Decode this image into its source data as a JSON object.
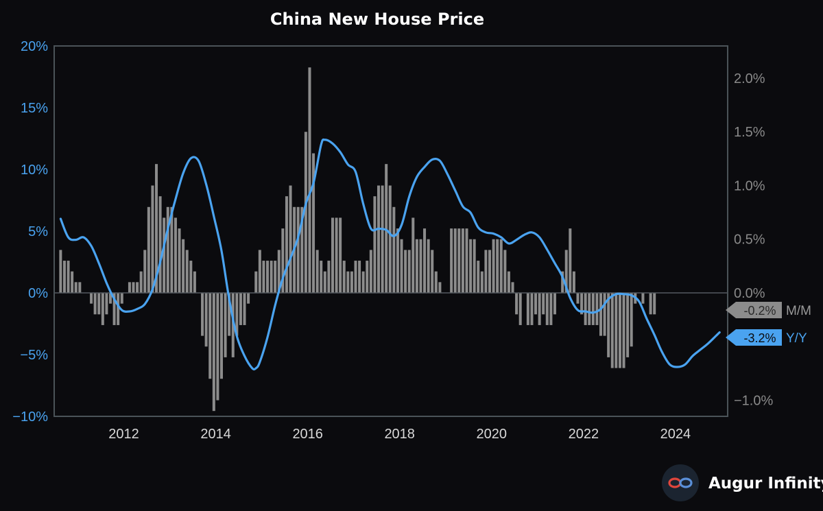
{
  "chart_data": {
    "type": "bar+line",
    "title": "China New House Price",
    "x_axis": {
      "ticks": [
        "2012",
        "2014",
        "2016",
        "2018",
        "2020",
        "2022",
        "2024"
      ]
    },
    "y_left": {
      "ylim": [
        -10,
        20
      ],
      "ticks": [
        20,
        15,
        10,
        5,
        0,
        -5,
        -10
      ],
      "tick_labels": [
        "20%",
        "15%",
        "10%",
        "5%",
        "0%",
        "−5%",
        "−10%"
      ],
      "color": "#4aa3f0"
    },
    "y_right": {
      "ylim": [
        -1.15,
        2.3
      ],
      "ticks": [
        2.0,
        1.5,
        1.0,
        0.5,
        0.0,
        -1.0
      ],
      "tick_labels": [
        "2.0%",
        "1.5%",
        "1.0%",
        "0.5%",
        "0.0%",
        "−1.0%"
      ],
      "color": "#8a8a8a"
    },
    "series": [
      {
        "name": "Y/Y",
        "kind": "line",
        "axis": "left",
        "color": "#4aa3f0",
        "last_value_label": "-3.2%",
        "points": [
          [
            "2011-02",
            6.0
          ],
          [
            "2011-04",
            4.5
          ],
          [
            "2011-06",
            4.3
          ],
          [
            "2011-08",
            4.5
          ],
          [
            "2011-10",
            3.8
          ],
          [
            "2011-12",
            2.4
          ],
          [
            "2012-02",
            0.8
          ],
          [
            "2012-04",
            -0.5
          ],
          [
            "2012-06",
            -1.4
          ],
          [
            "2012-08",
            -1.5
          ],
          [
            "2012-10",
            -1.3
          ],
          [
            "2012-12",
            -0.9
          ],
          [
            "2013-02",
            0.3
          ],
          [
            "2013-04",
            2.5
          ],
          [
            "2013-06",
            5.2
          ],
          [
            "2013-08",
            7.6
          ],
          [
            "2013-10",
            9.7
          ],
          [
            "2013-12",
            10.9
          ],
          [
            "2014-02",
            10.7
          ],
          [
            "2014-04",
            8.8
          ],
          [
            "2014-06",
            6.2
          ],
          [
            "2014-08",
            3.4
          ],
          [
            "2014-10",
            -0.5
          ],
          [
            "2014-12",
            -3.5
          ],
          [
            "2015-02",
            -5.1
          ],
          [
            "2015-04",
            -6.1
          ],
          [
            "2015-05",
            -6.1
          ],
          [
            "2015-06",
            -5.6
          ],
          [
            "2015-08",
            -3.6
          ],
          [
            "2015-10",
            -1.0
          ],
          [
            "2015-12",
            1.2
          ],
          [
            "2016-02",
            2.8
          ],
          [
            "2016-04",
            4.5
          ],
          [
            "2016-06",
            7.2
          ],
          [
            "2016-08",
            8.9
          ],
          [
            "2016-10",
            12.0
          ],
          [
            "2016-11",
            12.4
          ],
          [
            "2017-01",
            12.1
          ],
          [
            "2017-03",
            11.4
          ],
          [
            "2017-05",
            10.4
          ],
          [
            "2017-07",
            9.8
          ],
          [
            "2017-09",
            7.2
          ],
          [
            "2017-11",
            5.2
          ],
          [
            "2018-01",
            5.2
          ],
          [
            "2018-03",
            5.1
          ],
          [
            "2018-05",
            4.6
          ],
          [
            "2018-07",
            5.5
          ],
          [
            "2018-09",
            7.8
          ],
          [
            "2018-11",
            9.4
          ],
          [
            "2019-01",
            10.2
          ],
          [
            "2019-03",
            10.8
          ],
          [
            "2019-05",
            10.7
          ],
          [
            "2019-07",
            9.6
          ],
          [
            "2019-09",
            8.3
          ],
          [
            "2019-11",
            7.0
          ],
          [
            "2020-01",
            6.5
          ],
          [
            "2020-03",
            5.3
          ],
          [
            "2020-05",
            4.9
          ],
          [
            "2020-07",
            4.8
          ],
          [
            "2020-09",
            4.5
          ],
          [
            "2020-11",
            4.0
          ],
          [
            "2021-01",
            4.3
          ],
          [
            "2021-03",
            4.7
          ],
          [
            "2021-05",
            4.9
          ],
          [
            "2021-07",
            4.5
          ],
          [
            "2021-09",
            3.5
          ],
          [
            "2021-11",
            2.4
          ],
          [
            "2022-01",
            1.3
          ],
          [
            "2022-03",
            -0.4
          ],
          [
            "2022-05",
            -1.4
          ],
          [
            "2022-07",
            -1.5
          ],
          [
            "2022-09",
            -1.6
          ],
          [
            "2022-11",
            -1.3
          ],
          [
            "2023-01",
            -0.5
          ],
          [
            "2023-03",
            -0.1
          ],
          [
            "2023-05",
            -0.1
          ],
          [
            "2023-07",
            -0.2
          ],
          [
            "2023-09",
            -0.7
          ],
          [
            "2023-11",
            -2.1
          ],
          [
            "2024-01",
            -3.4
          ],
          [
            "2024-03",
            -4.8
          ],
          [
            "2024-05",
            -5.8
          ],
          [
            "2024-07",
            -6.0
          ],
          [
            "2024-09",
            -5.8
          ],
          [
            "2024-11",
            -5.1
          ],
          [
            "2025-01",
            -4.6
          ],
          [
            "2025-03",
            -4.1
          ],
          [
            "2025-05",
            -3.5
          ],
          [
            "2025-06",
            -3.2
          ]
        ]
      },
      {
        "name": "M/M",
        "kind": "bar",
        "axis": "right",
        "color": "#8c8c8c",
        "last_value_label": "-0.2%",
        "start": "2011-02",
        "values": [
          0.4,
          0.3,
          0.3,
          0.2,
          0.1,
          0.1,
          0.0,
          0.0,
          -0.1,
          -0.2,
          -0.2,
          -0.3,
          -0.2,
          -0.1,
          -0.3,
          -0.3,
          -0.1,
          0.0,
          0.1,
          0.1,
          0.1,
          0.2,
          0.4,
          0.8,
          1.0,
          1.2,
          0.9,
          0.7,
          0.8,
          0.8,
          0.7,
          0.6,
          0.5,
          0.4,
          0.3,
          0.2,
          0.0,
          -0.4,
          -0.5,
          -0.8,
          -1.1,
          -1.0,
          -0.8,
          -0.6,
          -0.4,
          -0.6,
          -0.4,
          -0.3,
          -0.3,
          -0.1,
          0.0,
          0.2,
          0.4,
          0.3,
          0.3,
          0.3,
          0.3,
          0.4,
          0.6,
          0.9,
          1.0,
          0.8,
          0.8,
          0.8,
          1.5,
          2.1,
          1.3,
          0.4,
          0.3,
          0.2,
          0.3,
          0.7,
          0.7,
          0.7,
          0.3,
          0.2,
          0.2,
          0.3,
          0.3,
          0.2,
          0.3,
          0.4,
          0.9,
          1.0,
          1.0,
          1.2,
          1.0,
          0.8,
          0.6,
          0.5,
          0.4,
          0.4,
          0.7,
          0.5,
          0.5,
          0.6,
          0.5,
          0.4,
          0.2,
          0.1,
          0.0,
          0.0,
          0.6,
          0.6,
          0.6,
          0.6,
          0.6,
          0.5,
          0.5,
          0.3,
          0.2,
          0.4,
          0.4,
          0.5,
          0.5,
          0.5,
          0.4,
          0.2,
          0.1,
          -0.2,
          -0.3,
          0.0,
          -0.3,
          -0.3,
          -0.2,
          -0.3,
          -0.2,
          -0.3,
          -0.3,
          -0.2,
          0.0,
          0.2,
          0.4,
          0.6,
          0.2,
          -0.1,
          -0.2,
          -0.3,
          -0.3,
          -0.3,
          -0.3,
          -0.4,
          -0.4,
          -0.6,
          -0.7,
          -0.7,
          -0.7,
          -0.7,
          -0.6,
          -0.5,
          -0.1,
          0.0,
          -0.1,
          0.0,
          -0.2,
          -0.2
        ]
      }
    ],
    "legend": "right-edge value tags",
    "grid": false
  },
  "branding": {
    "name": "Augur Infinity",
    "icon": "infinity-logo-icon"
  }
}
